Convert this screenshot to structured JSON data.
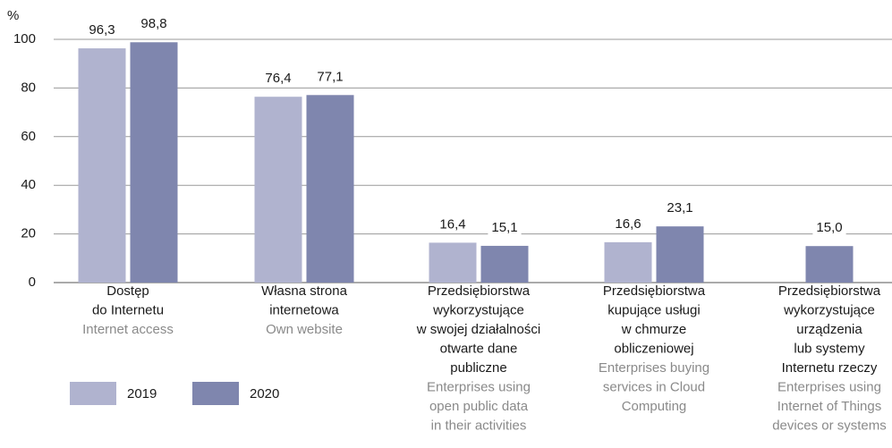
{
  "chart_data": {
    "type": "bar",
    "y_label": "%",
    "categories": [
      [
        "Dostęp",
        "do Internetu"
      ],
      [
        "Własna strona",
        "internetowa"
      ],
      [
        "Przedsiębiorstwa",
        "wykorzystujące",
        "w swojej działalności",
        "otwarte dane",
        "publiczne"
      ],
      [
        "Przedsiębiorstwa",
        "kupujące usługi",
        "w chmurze",
        "obliczeniowej"
      ],
      [
        "Przedsiębiorstwa",
        "wykorzystujące",
        "urządzenia",
        "lub systemy",
        "Internetu rzeczy"
      ]
    ],
    "categories_en": [
      [
        "Internet access"
      ],
      [
        "Own website"
      ],
      [
        "Enterprises using",
        "open public data",
        "in their activities"
      ],
      [
        "Enterprises buying",
        "services in Cloud",
        "Computing"
      ],
      [
        "Enterprises using",
        "Internet of Things",
        "devices or systems"
      ]
    ],
    "series": [
      {
        "name": "2019",
        "color": "#b0b3cf",
        "values": [
          96.3,
          76.4,
          16.4,
          16.6,
          null
        ],
        "value_labels": [
          "96,3",
          "76,4",
          "16,4",
          "16,6",
          null
        ]
      },
      {
        "name": "2020",
        "color": "#7f86ae",
        "values": [
          98.8,
          77.1,
          15.1,
          23.1,
          15.0
        ],
        "value_labels": [
          "98,8",
          "77,1",
          "15,1",
          "23,1",
          "15,0"
        ]
      }
    ],
    "ylim": [
      0,
      100
    ],
    "yticks": [
      0,
      20,
      40,
      60,
      80,
      100
    ],
    "grid": true,
    "legend": "lower left"
  }
}
